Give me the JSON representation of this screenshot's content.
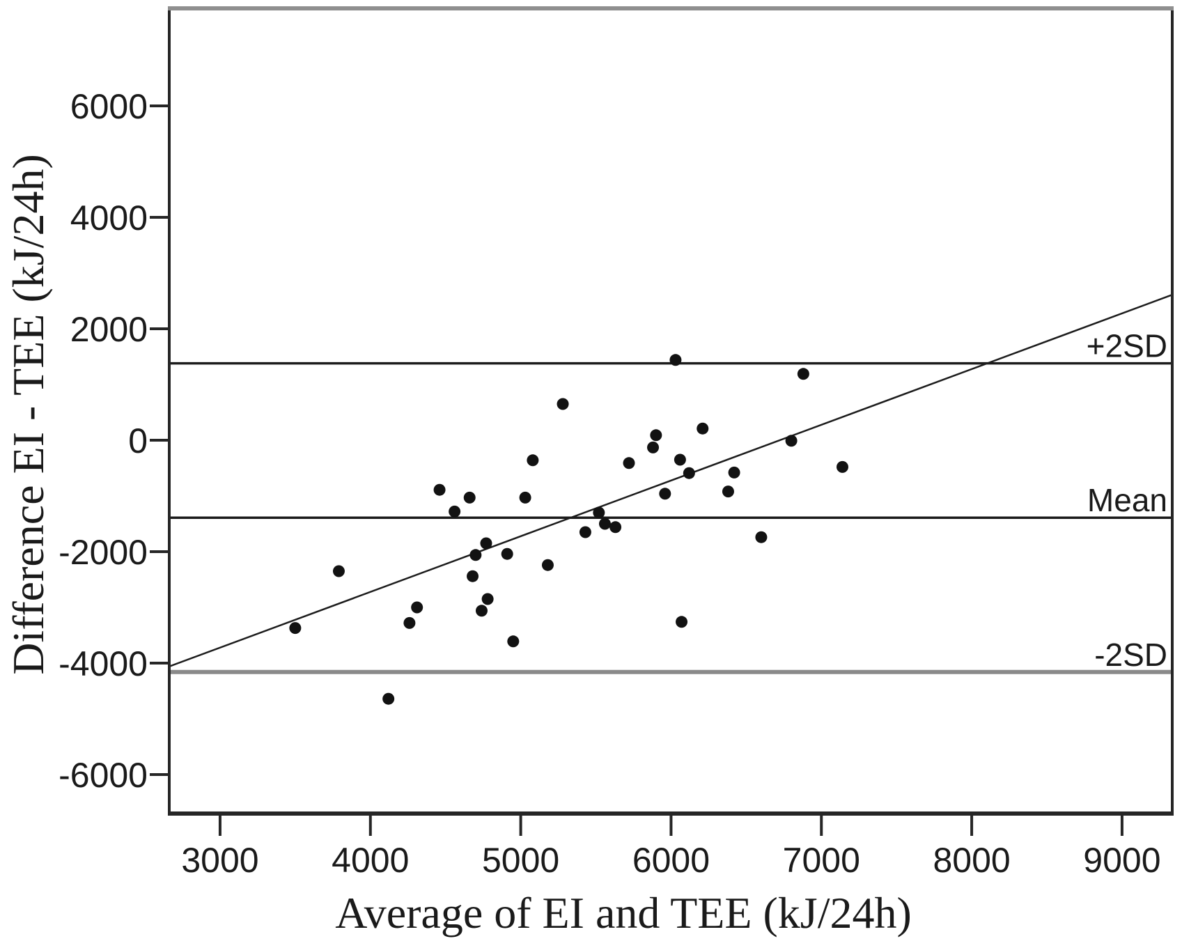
{
  "chart_data": {
    "type": "scatter",
    "title": "",
    "xlabel": "Average of EI and TEE (kJ/24h)",
    "ylabel": "Difference EI - TEE (kJ/24h)",
    "xlim": [
      2662,
      9334
    ],
    "ylim": [
      -6700,
      7750
    ],
    "x_ticks": [
      3000,
      4000,
      5000,
      6000,
      7000,
      8000,
      9000
    ],
    "y_ticks": [
      6000,
      4000,
      2000,
      0,
      -2000,
      -4000,
      -6000
    ],
    "grid": false,
    "legend": "none",
    "marker_shape": "filled-circle",
    "reference_lines": [
      {
        "id": "plus2sd",
        "label": "+2SD",
        "value": 1380
      },
      {
        "id": "mean",
        "label": "Mean",
        "value": -1390
      },
      {
        "id": "minus2sd",
        "label": "-2SD",
        "value": -4160
      }
    ],
    "trend_line": {
      "x": [
        2662,
        9334
      ],
      "y": [
        -4060,
        2610
      ]
    },
    "points": [
      [
        3500,
        -3370
      ],
      [
        3790,
        -2350
      ],
      [
        4120,
        -4640
      ],
      [
        4260,
        -3280
      ],
      [
        4310,
        -3000
      ],
      [
        4460,
        -890
      ],
      [
        4560,
        -1280
      ],
      [
        4660,
        -1030
      ],
      [
        4680,
        -2440
      ],
      [
        4700,
        -2060
      ],
      [
        4740,
        -3060
      ],
      [
        4770,
        -1850
      ],
      [
        4780,
        -2850
      ],
      [
        4910,
        -2040
      ],
      [
        4950,
        -3610
      ],
      [
        5030,
        -1030
      ],
      [
        5080,
        -360
      ],
      [
        5180,
        -2240
      ],
      [
        5280,
        650
      ],
      [
        5430,
        -1650
      ],
      [
        5520,
        -1300
      ],
      [
        5560,
        -1500
      ],
      [
        5630,
        -1560
      ],
      [
        5720,
        -410
      ],
      [
        5880,
        -130
      ],
      [
        5900,
        90
      ],
      [
        5960,
        -960
      ],
      [
        6030,
        1440
      ],
      [
        6060,
        -350
      ],
      [
        6070,
        -3260
      ],
      [
        6120,
        -590
      ],
      [
        6210,
        210
      ],
      [
        6380,
        -920
      ],
      [
        6420,
        -580
      ],
      [
        6600,
        -1740
      ],
      [
        6800,
        -10
      ],
      [
        6880,
        1190
      ],
      [
        7140,
        -480
      ]
    ],
    "colors": {
      "marker": "#121212",
      "ref_line": "#1c1c1c",
      "minus2sd_line": "#8a8a8a",
      "trend_line": "#1c1c1c",
      "frame": "#262626",
      "frame_top": "#8f8f8f",
      "text": "#1a1a1a"
    }
  }
}
